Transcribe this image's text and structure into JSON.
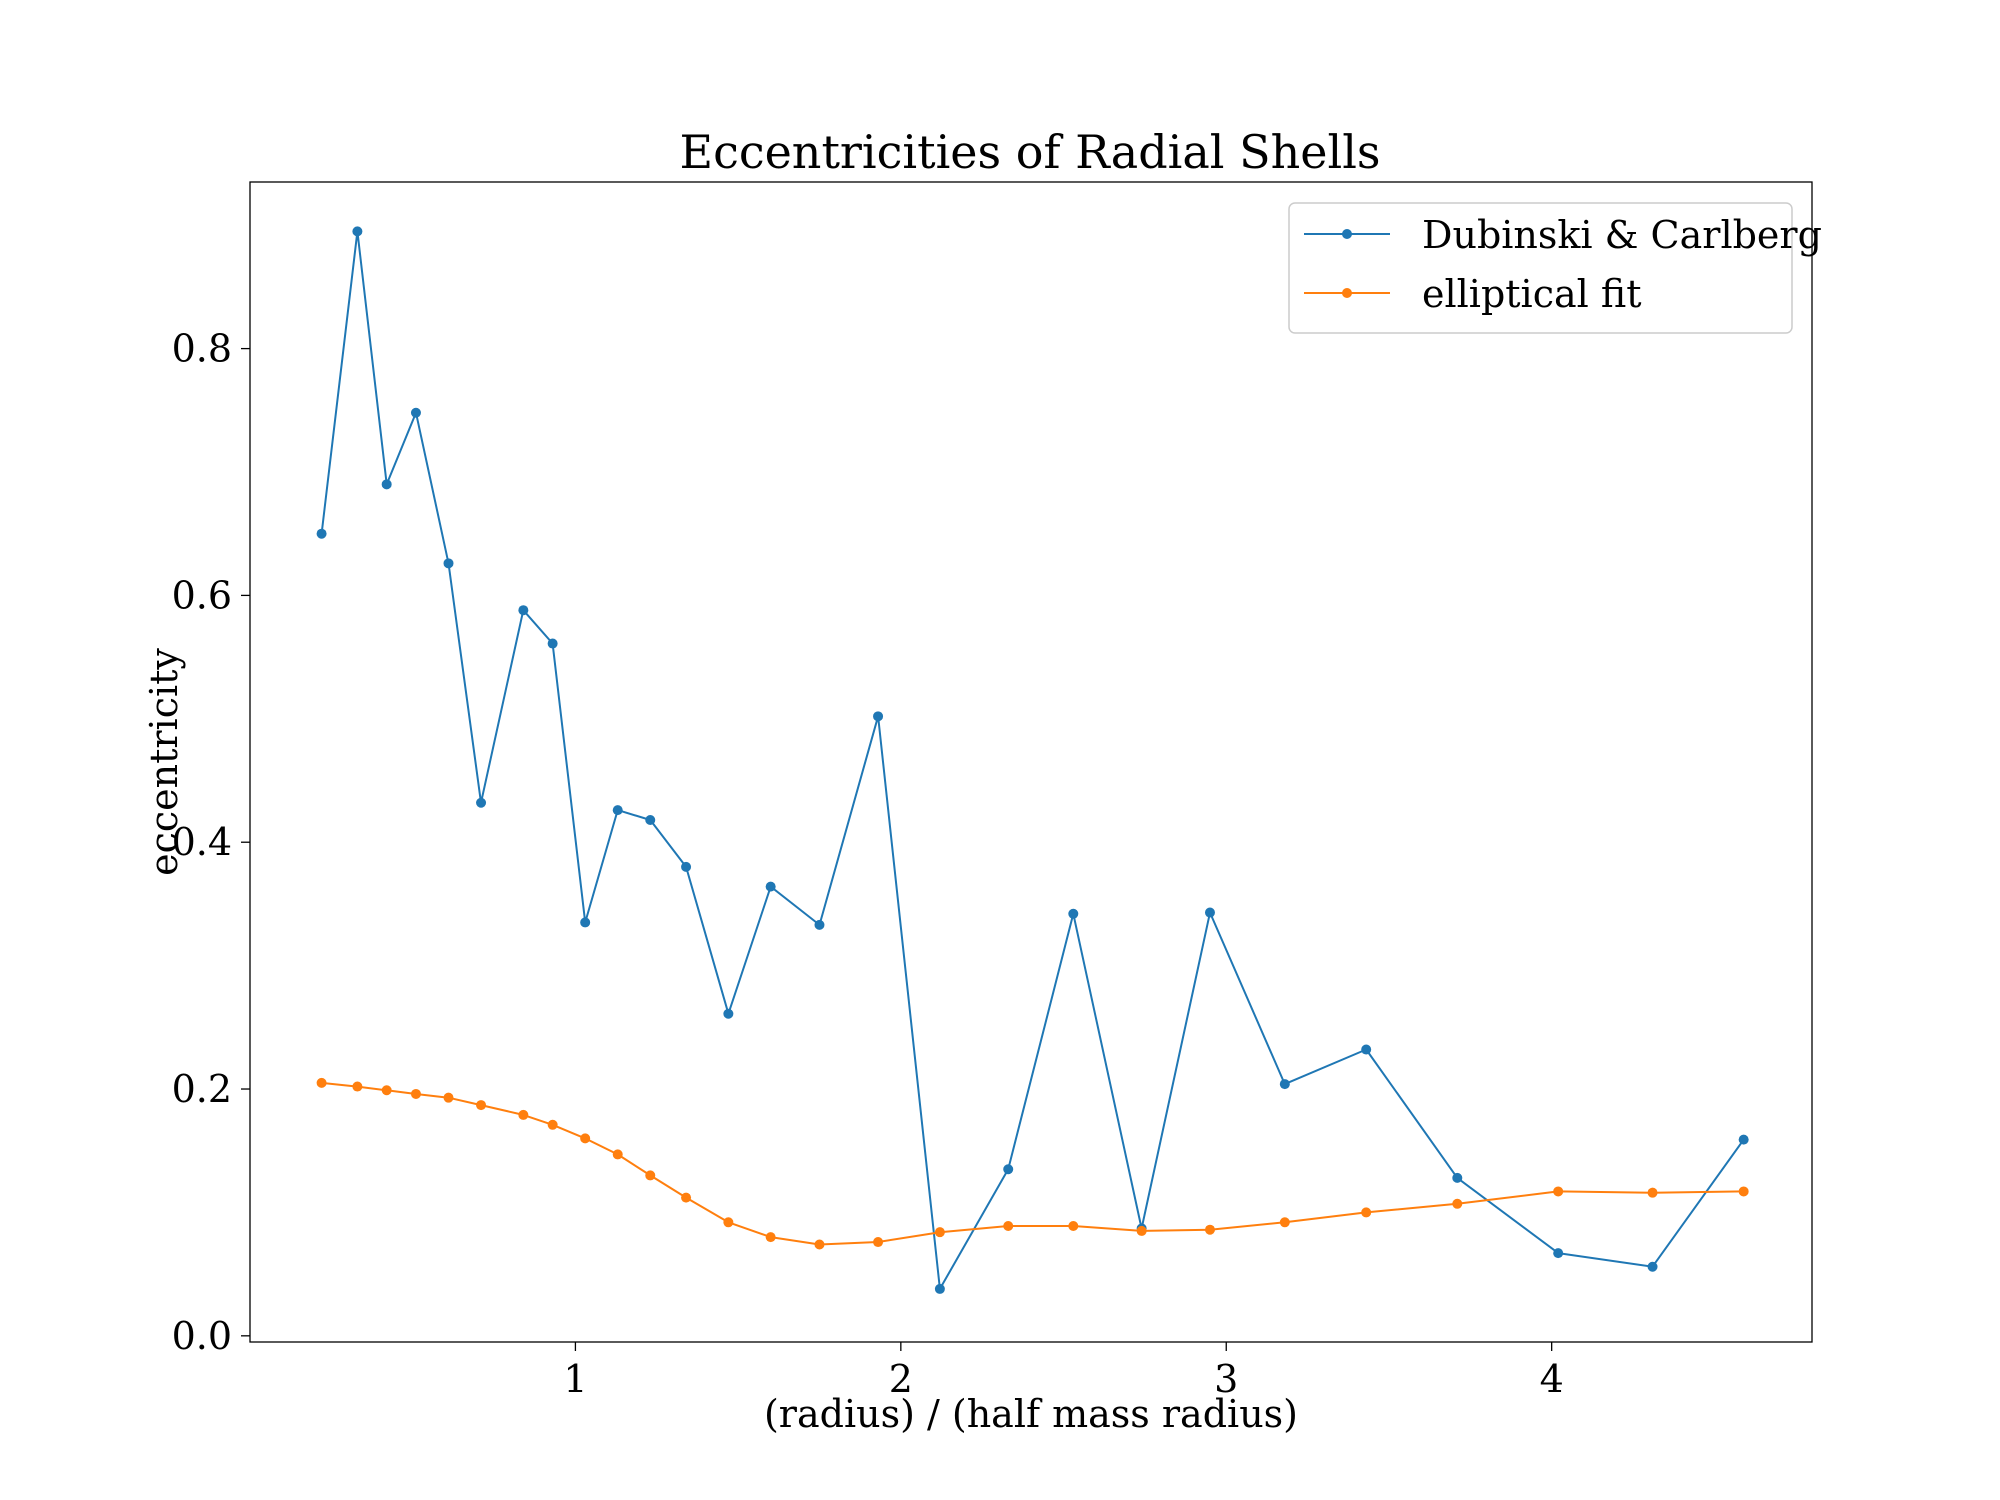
{
  "chart_data": {
    "type": "line",
    "title": "Eccentricities of Radial Shells",
    "xlabel": "(radius) / (half mass radius)",
    "ylabel": "eccentricity",
    "xlim": [
      0.0,
      4.8
    ],
    "ylim": [
      -0.005,
      0.935
    ],
    "xticks": [
      1,
      2,
      3,
      4
    ],
    "yticks": [
      0.0,
      0.2,
      0.4,
      0.6,
      0.8
    ],
    "xtick_labels": [
      "1",
      "2",
      "3",
      "4"
    ],
    "ytick_labels": [
      "0.0",
      "0.2",
      "0.4",
      "0.6",
      "0.8"
    ],
    "grid": false,
    "legend_position": "top-right",
    "x": [
      0.22,
      0.33,
      0.42,
      0.51,
      0.61,
      0.71,
      0.84,
      0.93,
      1.03,
      1.13,
      1.23,
      1.34,
      1.47,
      1.6,
      1.75,
      1.93,
      2.12,
      2.33,
      2.53,
      2.74,
      2.95,
      3.18,
      3.43,
      3.71,
      4.02,
      4.31,
      4.59
    ],
    "series": [
      {
        "name": "Dubinski & Carlberg",
        "color": "#1f77b4",
        "values": [
          0.65,
          0.895,
          0.69,
          0.748,
          0.626,
          0.432,
          0.588,
          0.561,
          0.335,
          0.426,
          0.418,
          0.38,
          0.261,
          0.364,
          0.333,
          0.502,
          0.038,
          0.135,
          0.342,
          0.087,
          0.343,
          0.204,
          0.232,
          0.128,
          0.067,
          0.056,
          0.159
        ]
      },
      {
        "name": "elliptical fit",
        "color": "#ff7f0e",
        "values": [
          0.205,
          0.202,
          0.199,
          0.196,
          0.193,
          0.187,
          0.179,
          0.171,
          0.16,
          0.147,
          0.13,
          0.112,
          0.092,
          0.08,
          0.074,
          0.076,
          0.084,
          0.089,
          0.089,
          0.085,
          0.086,
          0.092,
          0.1,
          0.107,
          0.117,
          0.116,
          0.117
        ]
      }
    ]
  }
}
